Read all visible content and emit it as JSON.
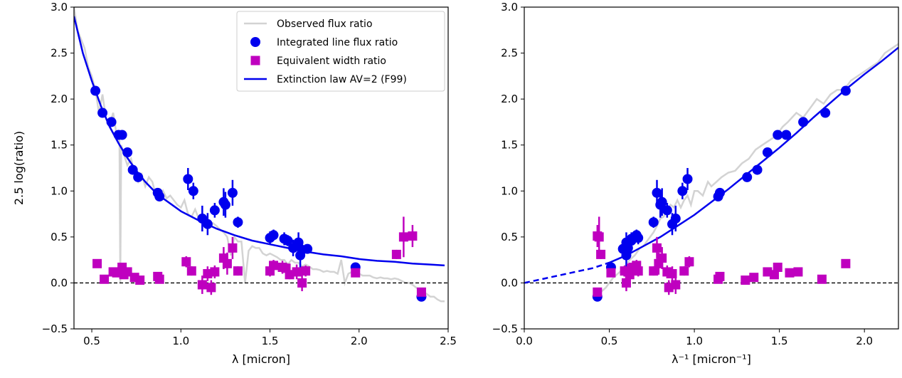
{
  "chart_data": [
    {
      "type": "scatter",
      "xlabel": "λ [micron]",
      "ylabel": "2.5 log(ratio)",
      "xlim": [
        0.4,
        2.5
      ],
      "ylim": [
        -0.5,
        3.0
      ],
      "xticks": [
        "0.5",
        "1.0",
        "1.5",
        "2.0",
        "2.5"
      ],
      "yticks": [
        "−0.5",
        "0.0",
        "0.5",
        "1.0",
        "1.5",
        "2.0",
        "2.5",
        "3.0"
      ],
      "legend_position": "top-right",
      "legend": [
        {
          "label": "Observed flux ratio",
          "color": "#d3d3d3",
          "marker": "line"
        },
        {
          "label": "Integrated line flux ratio",
          "color": "#0000ee",
          "marker": "circle"
        },
        {
          "label": "Equivalent width ratio",
          "color": "#bf00bf",
          "marker": "square"
        },
        {
          "label": "Extinction law AV=2 (F99)",
          "color": "#0000ee",
          "marker": "line"
        }
      ],
      "series": [
        {
          "name": "Observed flux ratio",
          "kind": "spectrum",
          "color": "#d3d3d3",
          "x": [
            0.4,
            0.42,
            0.44,
            0.46,
            0.48,
            0.5,
            0.52,
            0.54,
            0.56,
            0.58,
            0.6,
            0.62,
            0.64,
            0.655,
            0.66,
            0.665,
            0.68,
            0.7,
            0.72,
            0.74,
            0.76,
            0.78,
            0.8,
            0.82,
            0.84,
            0.86,
            0.88,
            0.9,
            0.92,
            0.94,
            0.96,
            0.98,
            1.0,
            1.02,
            1.04,
            1.06,
            1.08,
            1.1,
            1.12,
            1.14,
            1.16,
            1.18,
            1.2,
            1.22,
            1.24,
            1.26,
            1.28,
            1.3,
            1.32,
            1.34,
            1.36,
            1.38,
            1.4,
            1.42,
            1.44,
            1.46,
            1.48,
            1.5,
            1.52,
            1.54,
            1.56,
            1.58,
            1.6,
            1.62,
            1.64,
            1.66,
            1.68,
            1.7,
            1.72,
            1.74,
            1.76,
            1.78,
            1.8,
            1.82,
            1.84,
            1.86,
            1.88,
            1.9,
            1.92,
            1.94,
            1.96,
            1.98,
            2.0,
            2.02,
            2.04,
            2.06,
            2.08,
            2.1,
            2.12,
            2.14,
            2.16,
            2.18,
            2.2,
            2.22,
            2.24,
            2.26,
            2.28,
            2.3,
            2.32,
            2.34,
            2.36,
            2.38,
            2.4,
            2.42,
            2.44,
            2.46,
            2.48
          ],
          "y": [
            3.0,
            2.75,
            2.65,
            2.55,
            2.35,
            2.25,
            2.1,
            1.85,
            2.05,
            1.78,
            1.72,
            1.85,
            1.6,
            1.6,
            0.0,
            1.5,
            1.4,
            1.28,
            1.35,
            1.2,
            1.1,
            1.18,
            1.05,
            1.15,
            1.1,
            0.95,
            0.9,
            1.0,
            0.92,
            0.95,
            0.9,
            0.85,
            0.82,
            0.9,
            0.75,
            0.72,
            0.8,
            0.7,
            0.7,
            0.68,
            0.6,
            0.65,
            0.62,
            0.58,
            0.55,
            0.5,
            0.3,
            0.5,
            0.45,
            0.45,
            0.0,
            0.35,
            0.4,
            0.38,
            0.38,
            0.32,
            0.3,
            0.32,
            0.3,
            0.28,
            0.25,
            0.25,
            0.2,
            0.25,
            0.22,
            0.22,
            0.18,
            0.2,
            0.18,
            0.15,
            0.15,
            0.14,
            0.12,
            0.13,
            0.12,
            0.12,
            0.1,
            0.25,
            0.0,
            0.1,
            0.12,
            0.12,
            0.1,
            0.08,
            0.08,
            0.08,
            0.06,
            0.05,
            0.06,
            0.05,
            0.05,
            0.04,
            0.05,
            0.04,
            0.02,
            0.0,
            0.0,
            -0.02,
            -0.05,
            -0.08,
            -0.1,
            -0.12,
            -0.15,
            -0.15,
            -0.18,
            -0.2,
            -0.2
          ]
        },
        {
          "name": "Extinction law AV=2 (F99)",
          "kind": "line",
          "color": "#0000ee",
          "x": [
            0.4,
            0.45,
            0.5,
            0.55,
            0.6,
            0.65,
            0.7,
            0.75,
            0.8,
            0.85,
            0.9,
            0.95,
            1.0,
            1.1,
            1.2,
            1.3,
            1.4,
            1.5,
            1.6,
            1.7,
            1.8,
            1.9,
            2.0,
            2.1,
            2.2,
            2.3,
            2.4,
            2.48
          ],
          "y": [
            2.9,
            2.5,
            2.2,
            1.93,
            1.7,
            1.52,
            1.36,
            1.22,
            1.1,
            1.0,
            0.92,
            0.85,
            0.78,
            0.68,
            0.59,
            0.52,
            0.46,
            0.42,
            0.38,
            0.34,
            0.31,
            0.29,
            0.26,
            0.24,
            0.23,
            0.21,
            0.2,
            0.19
          ]
        },
        {
          "name": "Integrated line flux ratio",
          "kind": "points",
          "color": "#0000ee",
          "x": [
            0.52,
            0.56,
            0.61,
            0.65,
            0.67,
            0.7,
            0.73,
            0.76,
            0.87,
            0.88,
            1.04,
            1.07,
            1.12,
            1.15,
            1.19,
            1.24,
            1.25,
            1.29,
            1.32,
            1.5,
            1.52,
            1.58,
            1.6,
            1.63,
            1.66,
            1.67,
            1.68,
            1.71,
            1.98,
            2.35
          ],
          "y": [
            2.09,
            1.85,
            1.75,
            1.61,
            1.61,
            1.42,
            1.23,
            1.15,
            0.98,
            0.94,
            1.13,
            1.0,
            0.7,
            0.64,
            0.79,
            0.88,
            0.85,
            0.98,
            0.66,
            0.49,
            0.52,
            0.48,
            0.46,
            0.38,
            0.44,
            0.3,
            0.36,
            0.37,
            0.17,
            -0.15
          ],
          "yerr": [
            0.04,
            0.04,
            0.04,
            0.04,
            0.04,
            0.04,
            0.04,
            0.04,
            0.04,
            0.04,
            0.12,
            0.09,
            0.14,
            0.12,
            0.08,
            0.15,
            0.14,
            0.14,
            0.06,
            0.07,
            0.06,
            0.07,
            0.06,
            0.09,
            0.11,
            0.14,
            0.07,
            0.05,
            0.03,
            0.03
          ]
        },
        {
          "name": "Equivalent width ratio",
          "kind": "squares",
          "color": "#bf00bf",
          "x": [
            0.53,
            0.57,
            0.62,
            0.64,
            0.67,
            0.68,
            0.7,
            0.74,
            0.77,
            0.87,
            0.88,
            1.03,
            1.06,
            1.12,
            1.15,
            1.17,
            1.19,
            1.24,
            1.26,
            1.29,
            1.32,
            1.5,
            1.52,
            1.57,
            1.59,
            1.61,
            1.65,
            1.68,
            1.7,
            1.98,
            2.21,
            2.25,
            2.3,
            2.35
          ],
          "y": [
            0.21,
            0.04,
            0.12,
            0.11,
            0.17,
            0.09,
            0.12,
            0.06,
            0.03,
            0.07,
            0.04,
            0.23,
            0.13,
            -0.02,
            0.1,
            -0.05,
            0.12,
            0.27,
            0.21,
            0.38,
            0.13,
            0.13,
            0.19,
            0.17,
            0.16,
            0.09,
            0.12,
            0.0,
            0.13,
            0.11,
            0.31,
            0.5,
            0.51,
            -0.1
          ],
          "yerr": [
            0.03,
            0.02,
            0.03,
            0.03,
            0.03,
            0.03,
            0.03,
            0.02,
            0.02,
            0.03,
            0.03,
            0.06,
            0.05,
            0.1,
            0.08,
            0.08,
            0.07,
            0.12,
            0.12,
            0.12,
            0.05,
            0.06,
            0.06,
            0.07,
            0.06,
            0.05,
            0.08,
            0.09,
            0.06,
            0.03,
            0.05,
            0.22,
            0.12,
            0.03
          ]
        }
      ]
    },
    {
      "type": "scatter",
      "xlabel": "λ⁻¹ [micron⁻¹]",
      "ylabel": "",
      "xlim": [
        0.0,
        2.2
      ],
      "ylim": [
        -0.5,
        3.0
      ],
      "xticks": [
        "0.0",
        "0.5",
        "1.0",
        "1.5",
        "2.0"
      ],
      "yticks": [
        "−0.5",
        "0.0",
        "0.5",
        "1.0",
        "1.5",
        "2.0",
        "2.5",
        "3.0"
      ],
      "series": [
        {
          "name": "Observed flux ratio",
          "kind": "spectrum",
          "color": "#d3d3d3",
          "x": [
            0.42,
            0.45,
            0.48,
            0.5,
            0.52,
            0.55,
            0.58,
            0.6,
            0.62,
            0.65,
            0.68,
            0.7,
            0.72,
            0.74,
            0.76,
            0.78,
            0.8,
            0.82,
            0.84,
            0.86,
            0.88,
            0.9,
            0.92,
            0.94,
            0.96,
            0.98,
            1.0,
            1.02,
            1.05,
            1.08,
            1.1,
            1.13,
            1.16,
            1.2,
            1.24,
            1.28,
            1.32,
            1.36,
            1.4,
            1.44,
            1.48,
            1.5,
            1.52,
            1.55,
            1.6,
            1.64,
            1.68,
            1.72,
            1.76,
            1.8,
            1.84,
            1.88,
            1.92,
            1.96,
            2.0,
            2.04,
            2.08,
            2.12,
            2.16,
            2.2
          ],
          "y": [
            -0.15,
            -0.1,
            -0.05,
            0.0,
            0.05,
            0.1,
            0.15,
            0.2,
            0.25,
            0.3,
            0.38,
            0.4,
            0.45,
            0.5,
            0.55,
            0.62,
            0.7,
            0.72,
            0.8,
            0.85,
            0.82,
            0.9,
            0.82,
            0.9,
            0.95,
            0.85,
            1.0,
            1.0,
            0.95,
            1.1,
            1.05,
            1.1,
            1.15,
            1.2,
            1.22,
            1.3,
            1.35,
            1.45,
            1.5,
            1.55,
            1.6,
            1.65,
            1.7,
            1.75,
            1.85,
            1.8,
            1.9,
            2.0,
            1.95,
            2.05,
            2.1,
            2.1,
            2.2,
            2.25,
            2.3,
            2.35,
            2.4,
            2.5,
            2.55,
            2.6
          ]
        },
        {
          "name": "Extinction law AV=2 (F99)",
          "kind": "line",
          "color": "#0000ee",
          "x": [
            0.0,
            0.1,
            0.2,
            0.3,
            0.4,
            0.5,
            0.6,
            0.7,
            0.8,
            0.9,
            1.0,
            1.1,
            1.2,
            1.3,
            1.4,
            1.5,
            1.6,
            1.7,
            1.8,
            1.9,
            2.0,
            2.1,
            2.2
          ],
          "y": [
            0.0,
            0.04,
            0.08,
            0.12,
            0.16,
            0.22,
            0.3,
            0.4,
            0.5,
            0.62,
            0.74,
            0.88,
            1.02,
            1.17,
            1.32,
            1.47,
            1.63,
            1.8,
            1.96,
            2.12,
            2.27,
            2.41,
            2.56
          ]
        },
        {
          "name": "Integrated line flux ratio",
          "kind": "points",
          "color": "#0000ee",
          "x": [
            1.89,
            1.77,
            1.64,
            1.54,
            1.49,
            1.43,
            1.37,
            1.31,
            1.15,
            1.14,
            0.96,
            0.93,
            0.89,
            0.87,
            0.84,
            0.81,
            0.8,
            0.78,
            0.76,
            0.67,
            0.66,
            0.63,
            0.63,
            0.61,
            0.6,
            0.6,
            0.59,
            0.58,
            0.51,
            0.43
          ],
          "y": [
            2.09,
            1.85,
            1.75,
            1.61,
            1.61,
            1.42,
            1.23,
            1.15,
            0.98,
            0.94,
            1.13,
            1.0,
            0.7,
            0.64,
            0.79,
            0.88,
            0.85,
            0.98,
            0.66,
            0.49,
            0.52,
            0.48,
            0.46,
            0.38,
            0.44,
            0.3,
            0.36,
            0.37,
            0.17,
            -0.15
          ],
          "yerr": [
            0.04,
            0.04,
            0.04,
            0.04,
            0.04,
            0.04,
            0.04,
            0.04,
            0.04,
            0.04,
            0.12,
            0.09,
            0.14,
            0.12,
            0.08,
            0.15,
            0.14,
            0.14,
            0.06,
            0.07,
            0.06,
            0.07,
            0.06,
            0.09,
            0.11,
            0.14,
            0.07,
            0.05,
            0.03,
            0.03
          ]
        },
        {
          "name": "Equivalent width ratio",
          "kind": "squares",
          "color": "#bf00bf",
          "x": [
            1.89,
            1.75,
            1.61,
            1.56,
            1.49,
            1.47,
            1.43,
            1.35,
            1.3,
            1.15,
            1.14,
            0.97,
            0.94,
            0.89,
            0.87,
            0.85,
            0.84,
            0.81,
            0.79,
            0.78,
            0.76,
            0.67,
            0.66,
            0.64,
            0.63,
            0.62,
            0.61,
            0.6,
            0.59,
            0.51,
            0.45,
            0.44,
            0.43,
            0.43
          ],
          "y": [
            0.21,
            0.04,
            0.12,
            0.11,
            0.17,
            0.09,
            0.12,
            0.06,
            0.03,
            0.07,
            0.04,
            0.23,
            0.13,
            -0.02,
            0.1,
            -0.05,
            0.12,
            0.27,
            0.21,
            0.38,
            0.13,
            0.13,
            0.19,
            0.17,
            0.16,
            0.09,
            0.12,
            0.0,
            0.13,
            0.11,
            0.31,
            0.5,
            0.51,
            -0.1
          ],
          "yerr": [
            0.03,
            0.02,
            0.03,
            0.03,
            0.03,
            0.03,
            0.03,
            0.02,
            0.02,
            0.03,
            0.03,
            0.06,
            0.05,
            0.1,
            0.08,
            0.08,
            0.07,
            0.12,
            0.12,
            0.12,
            0.05,
            0.06,
            0.06,
            0.07,
            0.06,
            0.05,
            0.08,
            0.09,
            0.06,
            0.03,
            0.05,
            0.22,
            0.12,
            0.03
          ]
        }
      ]
    }
  ]
}
